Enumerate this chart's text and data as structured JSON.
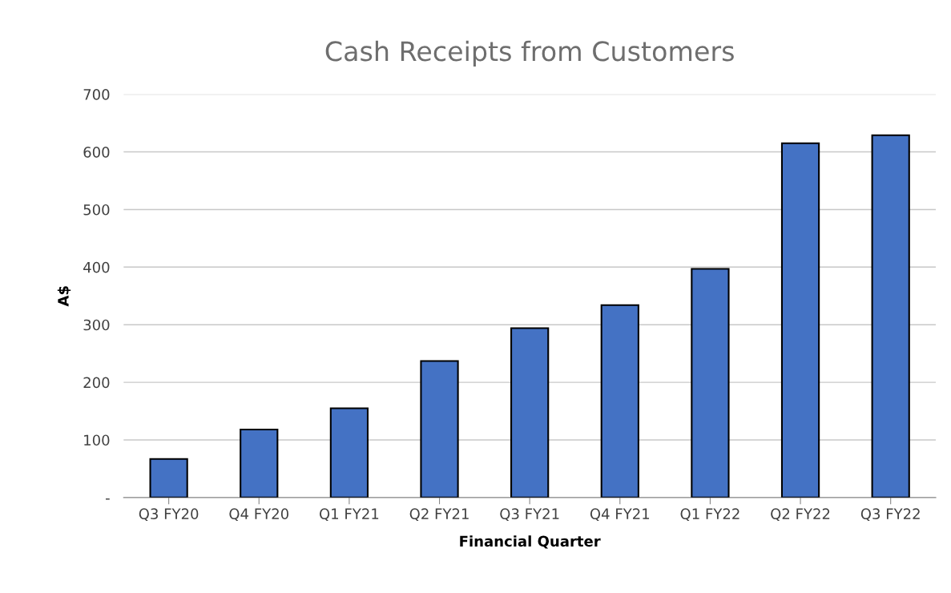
{
  "chart_data": {
    "type": "bar",
    "title": "Cash Receipts from Customers",
    "xlabel": "Financial Quarter",
    "ylabel": "A$",
    "categories": [
      "Q3 FY20",
      "Q4 FY20",
      "Q1 FY21",
      "Q2 FY21",
      "Q3 FY21",
      "Q4 FY21",
      "Q1 FY22",
      "Q2 FY22",
      "Q3 FY22"
    ],
    "values": [
      67,
      118,
      155,
      237,
      294,
      334,
      397,
      615,
      629
    ],
    "color": "#4472c4",
    "ylim": [
      0,
      700
    ],
    "yticks": [
      {
        "value": 0,
        "label": "-"
      },
      100,
      200,
      300,
      400,
      500,
      600,
      700
    ],
    "grid": "y",
    "legend": false
  }
}
